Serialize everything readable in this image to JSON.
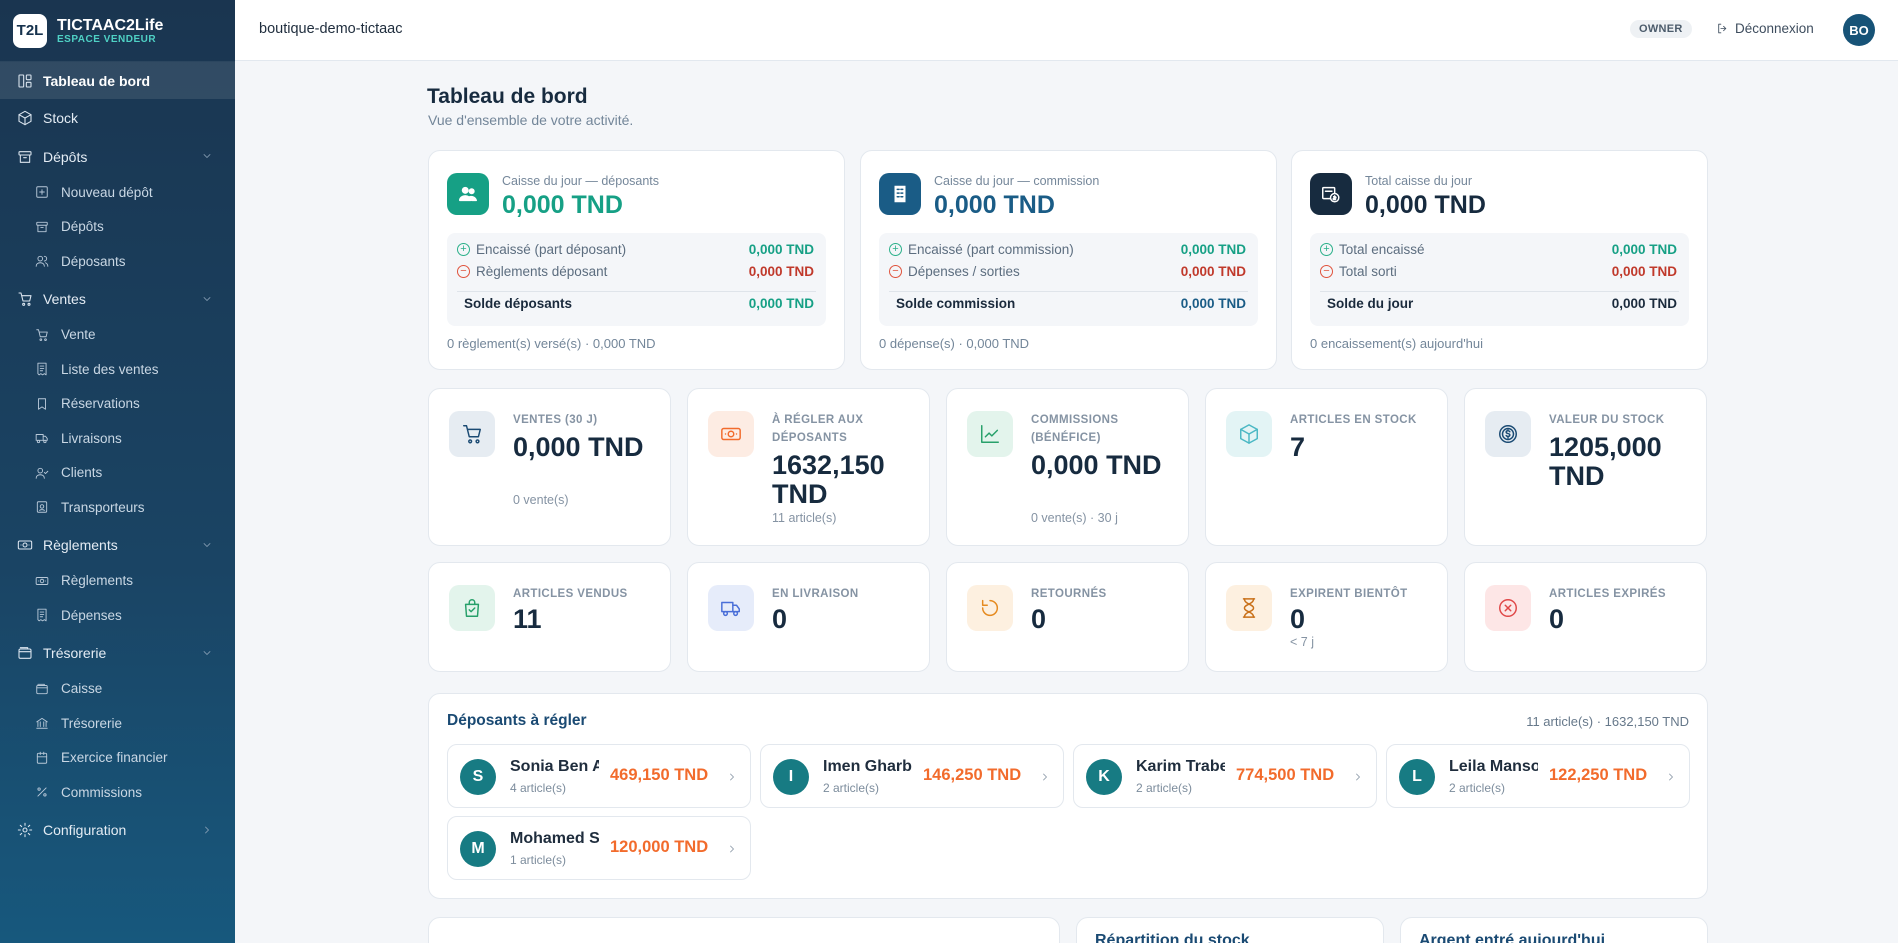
{
  "brand": {
    "logo": "T2L",
    "name": "TICTAAC2Life",
    "sub": "ESPACE VENDEUR"
  },
  "sidebar": {
    "items": [
      {
        "label": "Tableau de bord",
        "icon": "dashboard-icon",
        "active": true
      },
      {
        "label": "Stock",
        "icon": "box-icon"
      },
      {
        "label": "Dépôts",
        "icon": "archive-icon",
        "children": [
          {
            "label": "Nouveau dépôt",
            "icon": "plus-square-icon"
          },
          {
            "label": "Dépôts",
            "icon": "archive-icon"
          },
          {
            "label": "Déposants",
            "icon": "users-icon"
          }
        ]
      },
      {
        "label": "Ventes",
        "icon": "cart-icon",
        "children": [
          {
            "label": "Vente",
            "icon": "cart-icon"
          },
          {
            "label": "Liste des ventes",
            "icon": "receipt-icon"
          },
          {
            "label": "Réservations",
            "icon": "bookmark-icon"
          },
          {
            "label": "Livraisons",
            "icon": "truck-icon"
          },
          {
            "label": "Clients",
            "icon": "user-check-icon"
          },
          {
            "label": "Transporteurs",
            "icon": "id-badge-icon"
          }
        ]
      },
      {
        "label": "Règlements",
        "icon": "banknote-icon",
        "children": [
          {
            "label": "Règlements",
            "icon": "banknote-icon"
          },
          {
            "label": "Dépenses",
            "icon": "receipt-icon"
          }
        ]
      },
      {
        "label": "Trésorerie",
        "icon": "wallet-icon",
        "children": [
          {
            "label": "Caisse",
            "icon": "wallet-icon"
          },
          {
            "label": "Trésorerie",
            "icon": "bank-icon"
          },
          {
            "label": "Exercice financier",
            "icon": "calendar-icon"
          },
          {
            "label": "Commissions",
            "icon": "percent-icon"
          }
        ]
      },
      {
        "label": "Configuration",
        "icon": "gear-icon"
      }
    ]
  },
  "topbar": {
    "shop": "boutique-demo-tictaac",
    "role": "OWNER",
    "logout": "Déconnexion",
    "avatar": "BO"
  },
  "page": {
    "title": "Tableau de bord",
    "subtitle": "Vue d'ensemble de votre activité."
  },
  "cash": [
    {
      "label": "Caisse du jour — déposants",
      "amount": "0,000 TND",
      "color": "#16a085",
      "row1": "Encaissé (part déposant)",
      "row1_val": "0,000 TND",
      "row2": "Règlements déposant",
      "row2_val": "0,000 TND",
      "total_label": "Solde déposants",
      "total_val": "0,000 TND",
      "foot": "0 règlement(s) versé(s) · 0,000 TND"
    },
    {
      "label": "Caisse du jour — commission",
      "amount": "0,000 TND",
      "color": "#1a5c86",
      "row1": "Encaissé (part commission)",
      "row1_val": "0,000 TND",
      "row2": "Dépenses / sorties",
      "row2_val": "0,000 TND",
      "total_label": "Solde commission",
      "total_val": "0,000 TND",
      "foot": "0 dépense(s) · 0,000 TND"
    },
    {
      "label": "Total caisse du jour",
      "amount": "0,000 TND",
      "color": "#172b3f",
      "row1": "Total encaissé",
      "row1_val": "0,000 TND",
      "row2": "Total sorti",
      "row2_val": "0,000 TND",
      "total_label": "Solde du jour",
      "total_val": "0,000 TND",
      "foot": "0 encaissement(s) aujourd'hui"
    }
  ],
  "stats_row1": [
    {
      "label": "VENTES (30 J)",
      "value": "0,000 TND",
      "sub": "0 vente(s)",
      "icon": "cart-icon"
    },
    {
      "label": "À RÉGLER AUX DÉPOSANTS",
      "value": "1632,150 TND",
      "sub": "11 article(s)",
      "icon": "banknote-icon"
    },
    {
      "label": "COMMISSIONS (BÉNÉFICE)",
      "value": "0,000 TND",
      "sub": "0 vente(s) · 30 j",
      "icon": "trend-up-icon"
    },
    {
      "label": "ARTICLES EN STOCK",
      "value": "7",
      "sub": "",
      "icon": "box-icon"
    },
    {
      "label": "VALEUR DU STOCK",
      "value": "1205,000 TND",
      "sub": "",
      "icon": "dollar-coin-icon"
    }
  ],
  "stats_row2": [
    {
      "label": "ARTICLES VENDUS",
      "value": "11",
      "sub": "",
      "icon": "shopping-bag-icon"
    },
    {
      "label": "EN LIVRAISON",
      "value": "0",
      "sub": "",
      "icon": "truck-icon"
    },
    {
      "label": "RETOURNÉS",
      "value": "0",
      "sub": "",
      "icon": "rotate-icon"
    },
    {
      "label": "EXPIRENT BIENTÔT",
      "value": "0",
      "sub": "< 7 j",
      "icon": "hourglass-icon"
    },
    {
      "label": "ARTICLES EXPIRÉS",
      "value": "0",
      "sub": "",
      "icon": "x-circle-icon"
    }
  ],
  "deposants": {
    "title": "Déposants à régler",
    "meta": "11 article(s) · 1632,150 TND",
    "items": [
      {
        "initial": "S",
        "name": "Sonia Ben A",
        "sub": "4 article(s)",
        "amount": "469,150 TND"
      },
      {
        "initial": "I",
        "name": "Imen Gharb",
        "sub": "2 article(s)",
        "amount": "146,250 TND"
      },
      {
        "initial": "K",
        "name": "Karim Trabe",
        "sub": "2 article(s)",
        "amount": "774,500 TND"
      },
      {
        "initial": "L",
        "name": "Leila Manso",
        "sub": "2 article(s)",
        "amount": "122,250 TND"
      },
      {
        "initial": "M",
        "name": "Mohamed S",
        "sub": "1 article(s)",
        "amount": "120,000 TND"
      }
    ]
  },
  "bottom": {
    "repartition": "Répartition du stock",
    "argent": "Argent entré aujourd'hui"
  }
}
